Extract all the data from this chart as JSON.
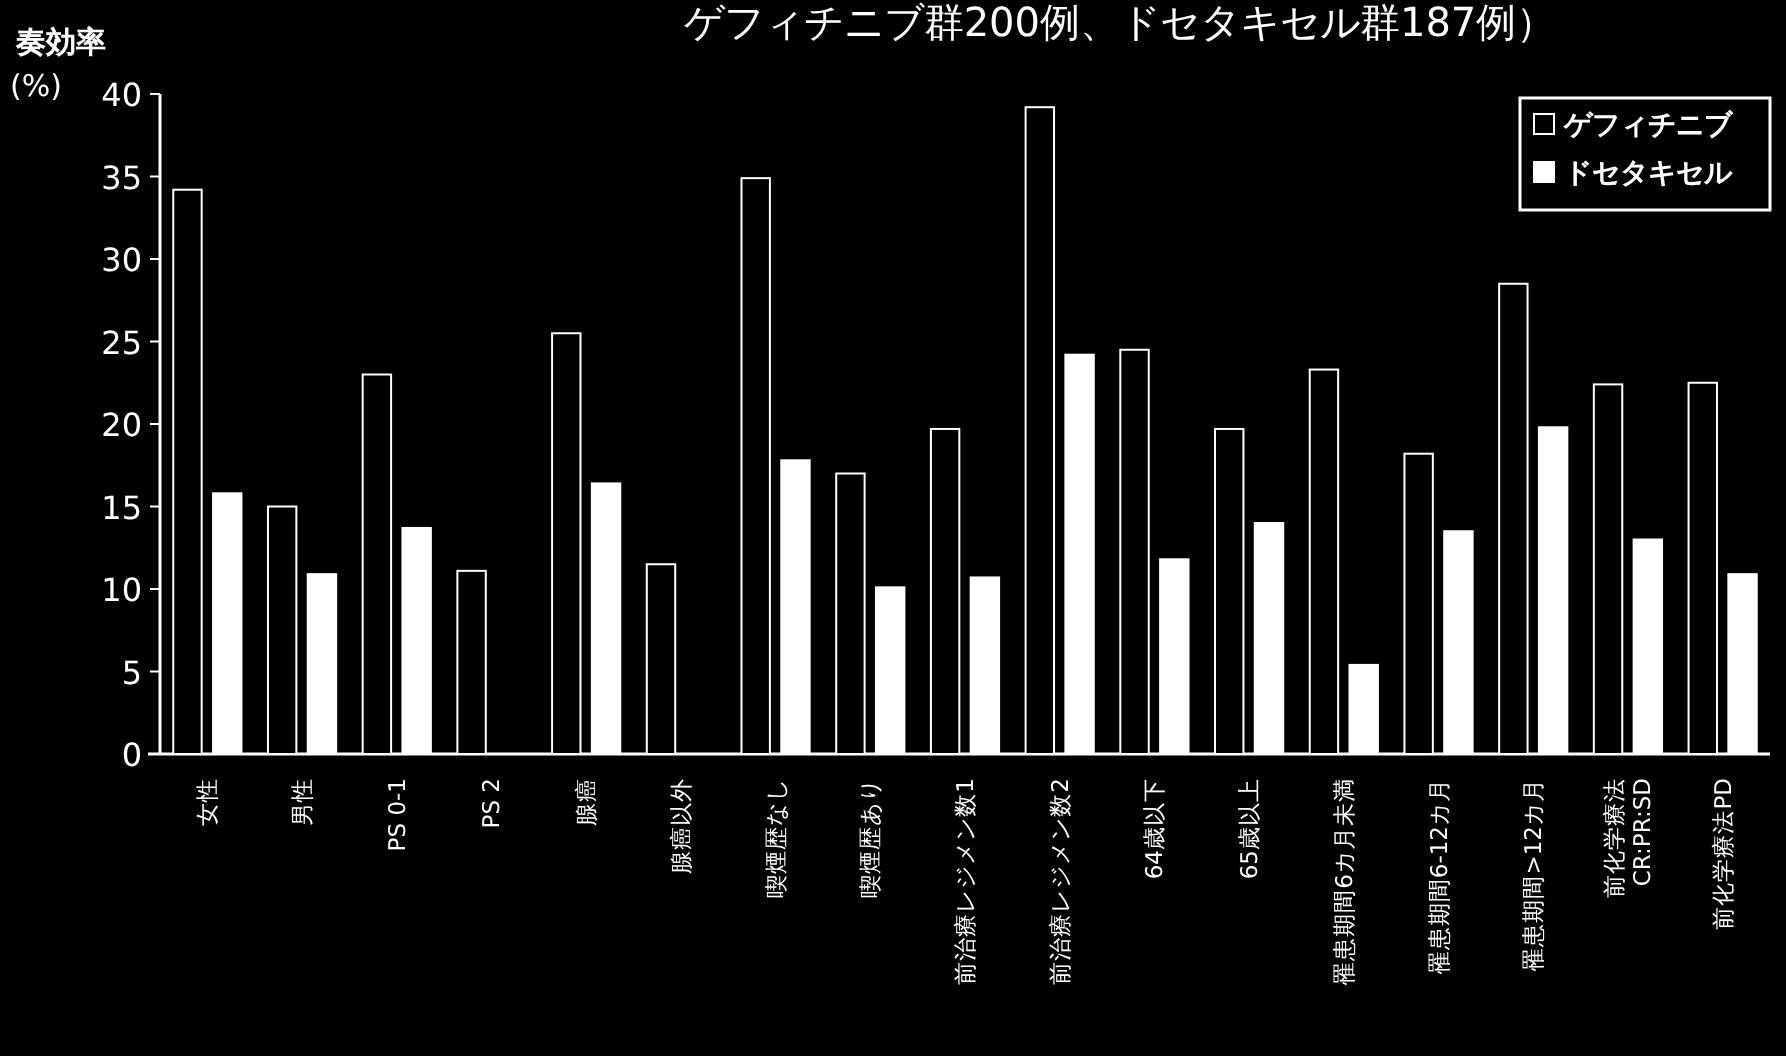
{
  "chart_data": {
    "type": "bar",
    "title": "ゲフィチニブ群200例、ドセタキセル群187例）",
    "ylabel": "奏効率\n(%)",
    "categories": [
      "女性",
      "男性",
      "PS 0-1",
      "PS 2",
      "腺癌",
      "腺癌以外",
      "喫煙歴なし",
      "喫煙歴あり",
      "前治療レジメン数1",
      "前治療レジメン数2",
      "64歳以下",
      "65歳以上",
      "罹患期間6カ月未満",
      "罹患期間6-12カ月",
      "罹患期間>12カ月",
      "前化学療法\nCR:PR:SD",
      "前化学療法PD"
    ],
    "series": [
      {
        "name": "ゲフィチニブ",
        "color": "#000000",
        "values": [
          34.2,
          15.0,
          23.0,
          11.1,
          25.5,
          11.5,
          34.9,
          17.0,
          19.7,
          39.2,
          24.5,
          19.7,
          23.3,
          18.2,
          28.5,
          22.4,
          22.5
        ]
      },
      {
        "name": "ドセタキセル",
        "color": "#ffffff",
        "values": [
          15.8,
          10.9,
          13.7,
          null,
          16.4,
          null,
          17.8,
          10.1,
          10.7,
          24.2,
          11.8,
          14.0,
          5.4,
          13.5,
          19.8,
          13.0,
          10.9
        ]
      }
    ],
    "ylim": [
      0,
      40
    ],
    "yticks": [
      0,
      5,
      10,
      15,
      20,
      25,
      30,
      35,
      40
    ],
    "legend": "top right",
    "grid": false
  }
}
